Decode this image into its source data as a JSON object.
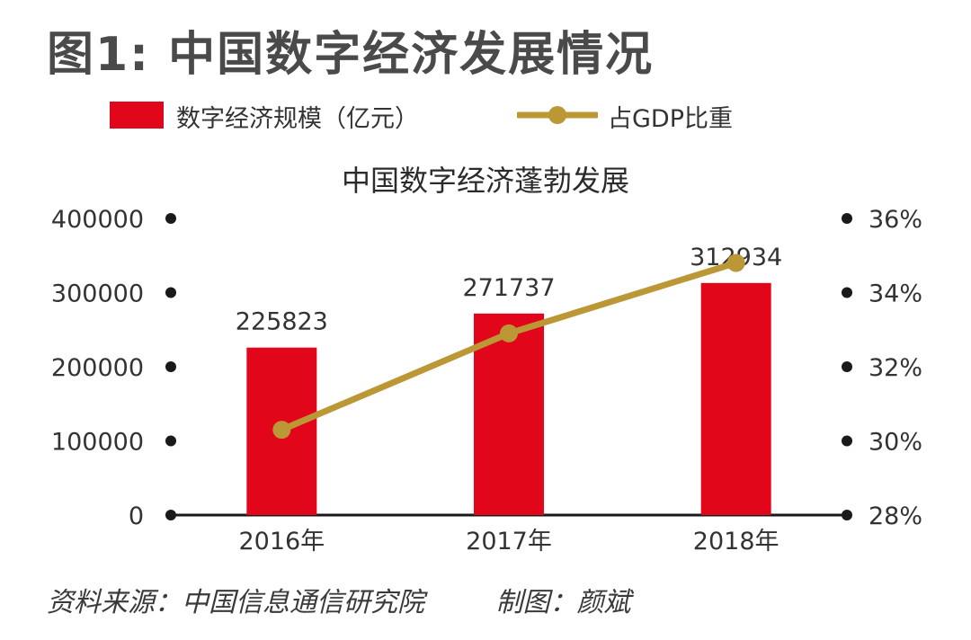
{
  "figure_title": "图1: 中国数字经济发展情况",
  "legend": {
    "bar_label": "数字经济规模（亿元）",
    "line_label": "占GDP比重"
  },
  "footer": {
    "source": "资料来源：中国信息通信研究院",
    "credit": "制图：颜斌"
  },
  "colors": {
    "bar": "#e2061b",
    "line": "#bb9736",
    "axis": "#1a1a1a"
  },
  "chart_data": {
    "type": "bar",
    "title": "中国数字经济蓬勃发展",
    "categories": [
      "2016年",
      "2017年",
      "2018年"
    ],
    "series": [
      {
        "name": "数字经济规模（亿元）",
        "type": "bar",
        "axis": "left",
        "values": [
          225823,
          271737,
          312934
        ]
      },
      {
        "name": "占GDP比重",
        "type": "line",
        "axis": "right",
        "values": [
          30.3,
          32.9,
          34.8
        ]
      }
    ],
    "y_left": {
      "ticks": [
        "400000",
        "300000",
        "200000",
        "100000",
        "0"
      ],
      "range": [
        0,
        400000
      ]
    },
    "y_right": {
      "ticks": [
        "36%",
        "34%",
        "32%",
        "30%",
        "28%"
      ],
      "range": [
        28,
        36
      ]
    },
    "data_labels": [
      "225823",
      "271737",
      "312934"
    ],
    "grid": false
  }
}
